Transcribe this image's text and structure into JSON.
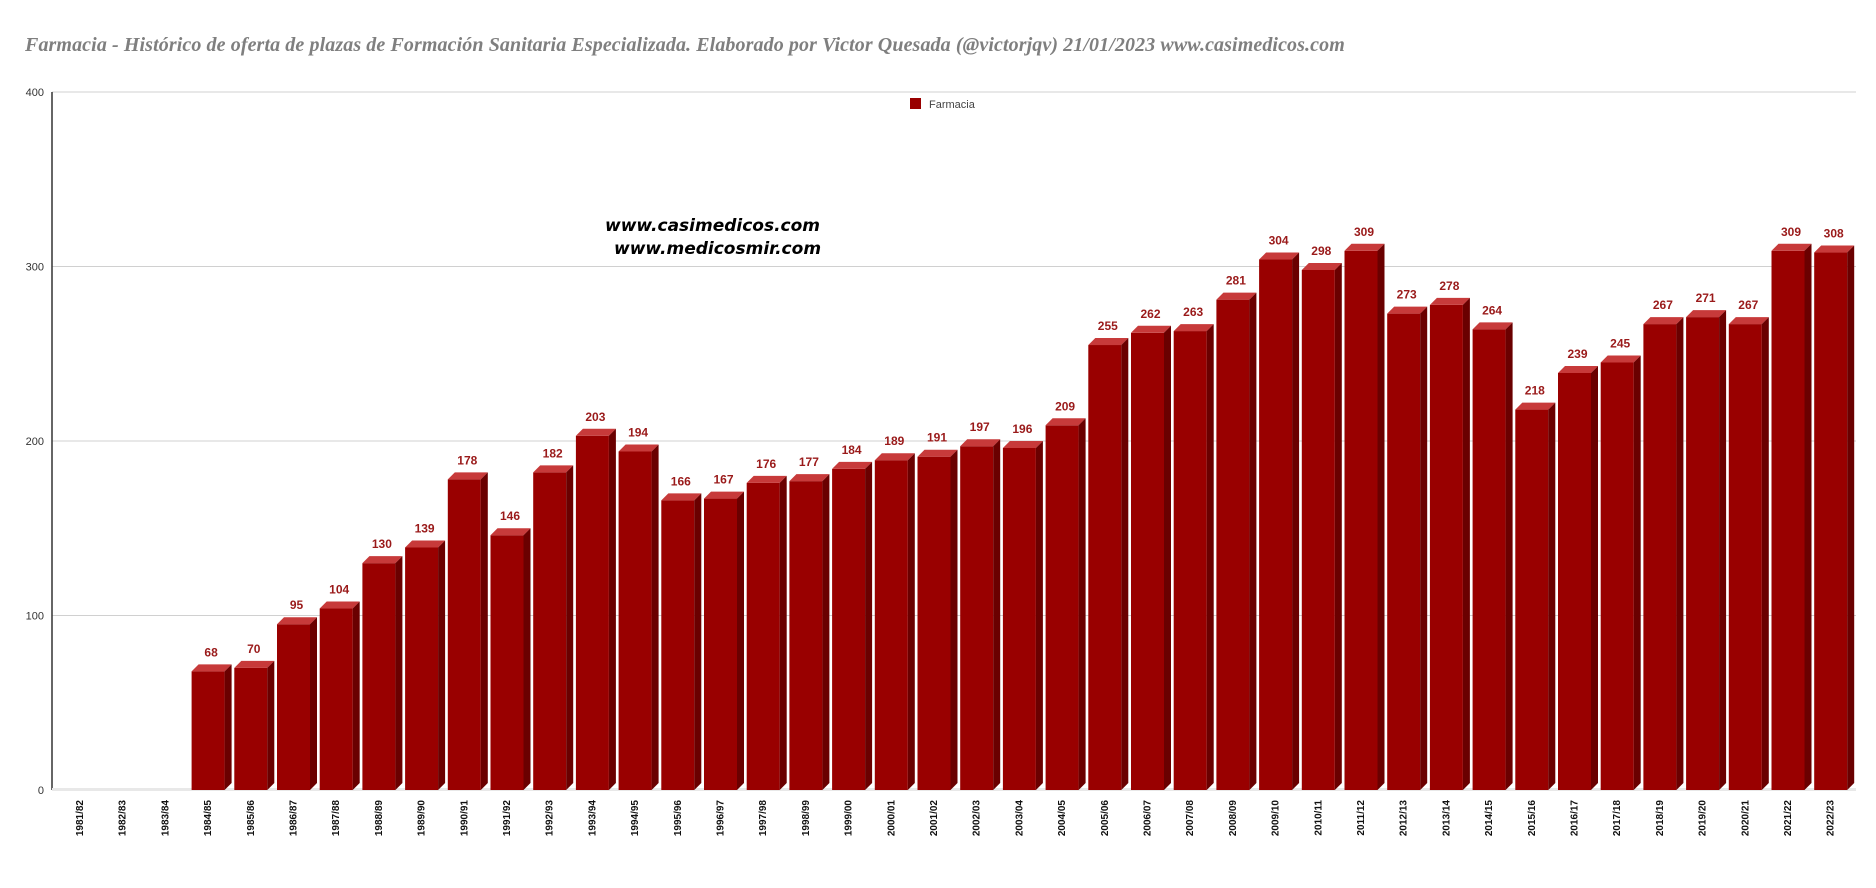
{
  "chart_data": {
    "type": "bar",
    "title": "Farmacia - Histórico de oferta de plazas de Formación Sanitaria Especializada. Elaborado por Victor Quesada (@victorjqv)  21/01/2023 www.casimedicos.com",
    "xlabel": "",
    "ylabel": "",
    "ylim": [
      0,
      400
    ],
    "yticks": [
      0,
      100,
      200,
      300,
      400
    ],
    "grid": true,
    "legend_position": "top-center",
    "watermarks": [
      "www.casimedicos.com",
      "www.medicosmir.com"
    ],
    "categories": [
      "1981/82",
      "1982/83",
      "1983/84",
      "1984/85",
      "1985/86",
      "1986/87",
      "1987/88",
      "1988/89",
      "1989/90",
      "1990/91",
      "1991/92",
      "1992/93",
      "1993/94",
      "1994/95",
      "1995/96",
      "1996/97",
      "1997/98",
      "1998/99",
      "1999/00",
      "2000/01",
      "2001/02",
      "2002/03",
      "2003/04",
      "2004/05",
      "2005/06",
      "2006/07",
      "2007/08",
      "2008/09",
      "2009/10",
      "2010/11",
      "2011/12",
      "2012/13",
      "2013/14",
      "2014/15",
      "2015/16",
      "2016/17",
      "2017/18",
      "2018/19",
      "2019/20",
      "2020/21",
      "2021/22",
      "2022/23"
    ],
    "series": [
      {
        "name": "Farmacia",
        "color": "#990000",
        "values": [
          null,
          null,
          null,
          68,
          70,
          95,
          104,
          130,
          139,
          178,
          146,
          182,
          203,
          194,
          166,
          167,
          176,
          177,
          184,
          189,
          191,
          197,
          196,
          209,
          255,
          262,
          263,
          281,
          304,
          298,
          309,
          273,
          278,
          264,
          218,
          239,
          245,
          267,
          271,
          267,
          309,
          308
        ]
      }
    ]
  }
}
